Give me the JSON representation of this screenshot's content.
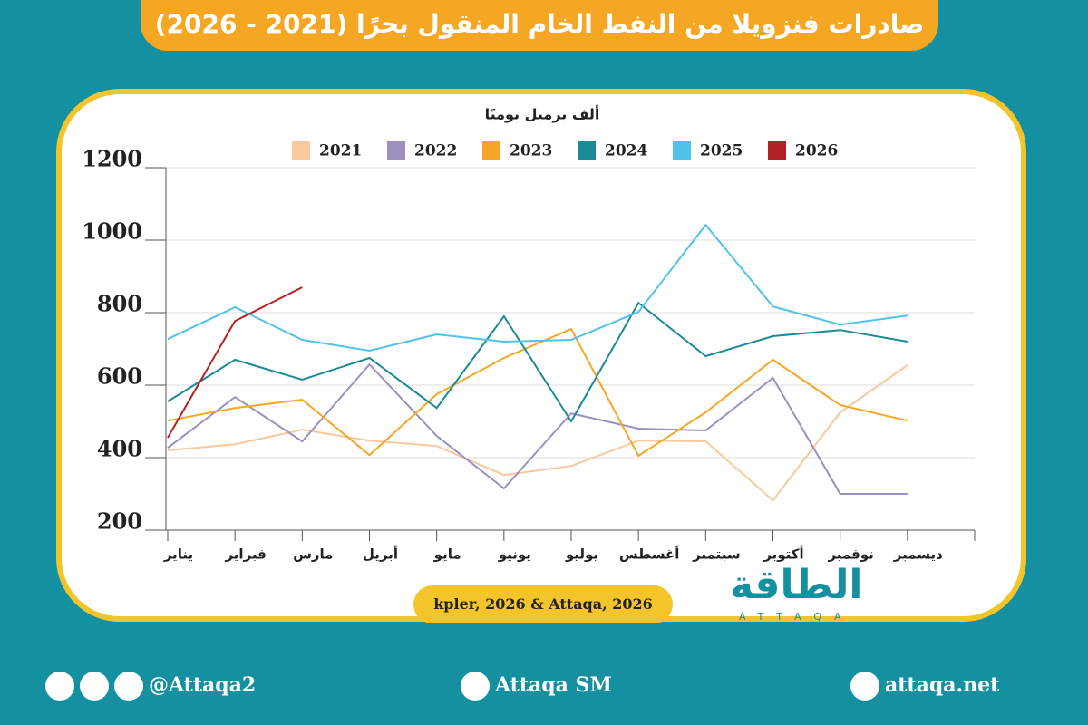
{
  "chart_data": {
    "type": "line",
    "title": "صادرات فنزويلا من النفط الخام المنقول بحرًا (2021 - 2026)",
    "y_label": "ألف برميل يوميًا",
    "source": "kpler, 2026 & Attaqa, 2026",
    "categories": [
      "يناير",
      "فبراير",
      "مارس",
      "أبريل",
      "مايو",
      "يونيو",
      "يوليو",
      "أغسطس",
      "سبتمبر",
      "أكتوبر",
      "نوفمبر",
      "ديسمبر"
    ],
    "series": [
      {
        "name": "2021",
        "color": "#f9c89b",
        "values": [
          420,
          437,
          477,
          447,
          432,
          352,
          377,
          447,
          445,
          282,
          525,
          655
        ]
      },
      {
        "name": "2022",
        "color": "#9d8fbf",
        "values": [
          427,
          567,
          445,
          657,
          460,
          315,
          522,
          480,
          475,
          620,
          300,
          300
        ]
      },
      {
        "name": "2023",
        "color": "#f5a623",
        "values": [
          502,
          537,
          560,
          407,
          575,
          675,
          755,
          405,
          525,
          670,
          545,
          502
        ]
      },
      {
        "name": "2024",
        "color": "#1b8a94",
        "values": [
          555,
          670,
          615,
          675,
          537,
          790,
          500,
          827,
          680,
          735,
          752,
          720
        ]
      },
      {
        "name": "2025",
        "color": "#4fc3e8",
        "values": [
          727,
          815,
          725,
          695,
          740,
          720,
          725,
          802,
          1042,
          817,
          767,
          792
        ]
      },
      {
        "name": "2026",
        "color": "#b22222",
        "values": [
          455,
          777,
          870,
          null,
          null,
          null,
          null,
          null,
          null,
          null,
          null,
          null
        ]
      }
    ],
    "ylim": [
      200,
      1200
    ],
    "yticks": [
      200,
      400,
      600,
      800,
      1000,
      1200
    ],
    "grid": true
  },
  "logo": {
    "ar": "الطاقة",
    "en": "ATTAQA"
  },
  "footer": {
    "social": "@Attaqa2",
    "youtube": "Attaqa SM",
    "site": "attaqa.net"
  }
}
